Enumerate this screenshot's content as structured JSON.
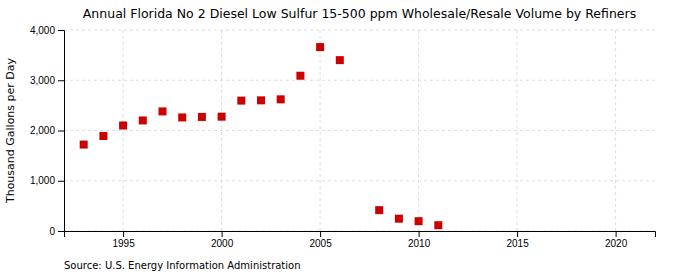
{
  "chart_data": {
    "type": "scatter",
    "title": "Annual Florida No 2 Diesel Low Sulfur 15-500 ppm Wholesale/Resale Volume by Refiners",
    "ylabel": "Thousand Gallons per Day",
    "annotations": [
      "Source: U.S. Energy Information Administration"
    ],
    "x": [
      1993,
      1994,
      1995,
      1996,
      1997,
      1998,
      1999,
      2000,
      2001,
      2002,
      2003,
      2004,
      2005,
      2006,
      2008,
      2009,
      2010,
      2011
    ],
    "values": [
      1720,
      1890,
      2100,
      2200,
      2380,
      2260,
      2270,
      2275,
      2595,
      2600,
      2620,
      3090,
      3660,
      3400,
      415,
      245,
      195,
      115
    ],
    "color": "#cc0000",
    "marker": "square",
    "xlim": [
      1992,
      2022
    ],
    "ylim": [
      0,
      4000
    ],
    "xticks": [
      1995,
      2000,
      2005,
      2010,
      2015,
      2020
    ],
    "yticks": [
      0,
      {
        "value": 1000,
        "label": "1,000"
      },
      {
        "value": 2000,
        "label": "2,000"
      },
      {
        "value": 3000,
        "label": "3,000"
      },
      {
        "value": 4000,
        "label": "4,000"
      }
    ],
    "grid": true
  }
}
